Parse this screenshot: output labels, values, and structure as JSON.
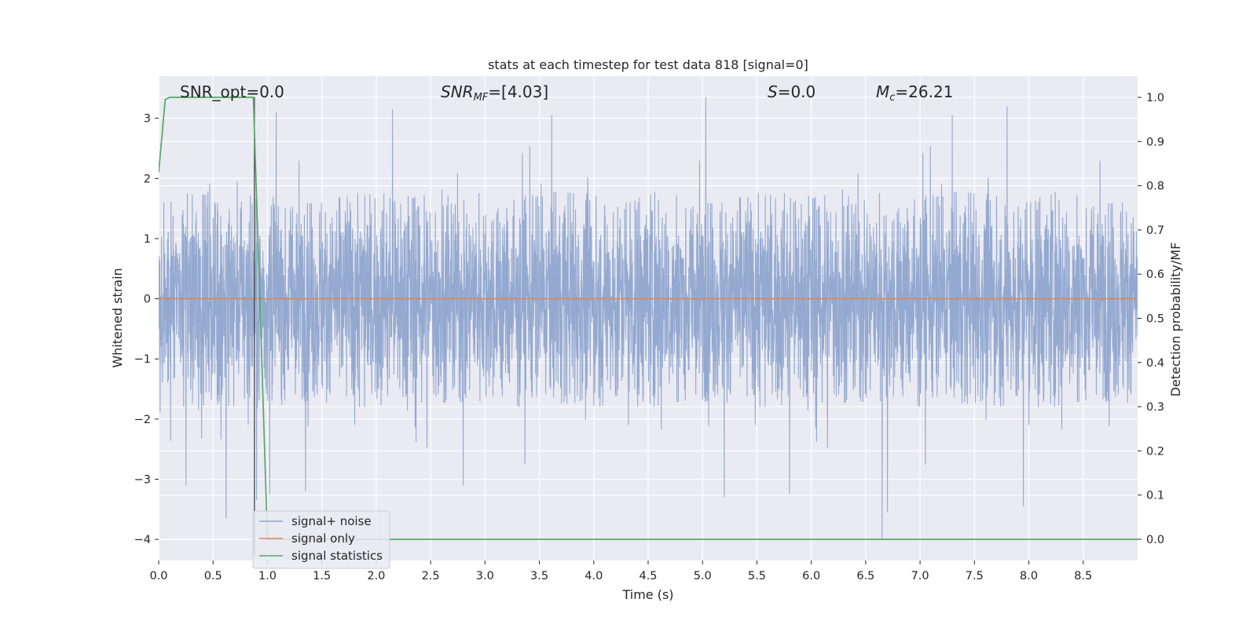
{
  "chart_data": {
    "type": "line",
    "title": "stats at each timestep for test data 818 [signal=0]",
    "xlabel": "Time (s)",
    "ylabel": "Whitened strain",
    "ylabel_right": "Detection probability/MF",
    "xlim": [
      0.0,
      9.0
    ],
    "ylim": [
      -4.35,
      3.7
    ],
    "ylim_right": [
      -0.048,
      1.048
    ],
    "xticks": [
      0.0,
      0.5,
      1.0,
      1.5,
      2.0,
      2.5,
      3.0,
      3.5,
      4.0,
      4.5,
      5.0,
      5.5,
      6.0,
      6.5,
      7.0,
      7.5,
      8.0,
      8.5
    ],
    "xtick_labels": [
      "0.0",
      "0.5",
      "1.0",
      "1.5",
      "2.0",
      "2.5",
      "3.0",
      "3.5",
      "4.0",
      "4.5",
      "5.0",
      "5.5",
      "6.0",
      "6.5",
      "7.0",
      "7.5",
      "8.0",
      "8.5"
    ],
    "yticks": [
      -4,
      -3,
      -2,
      -1,
      0,
      1,
      2,
      3
    ],
    "ytick_labels": [
      "−4",
      "−3",
      "−2",
      "−1",
      "0",
      "1",
      "2",
      "3"
    ],
    "yticks_right": [
      0.0,
      0.1,
      0.2,
      0.3,
      0.4,
      0.5,
      0.6,
      0.7,
      0.8,
      0.9,
      1.0
    ],
    "ytick_labels_right": [
      "0.0",
      "0.1",
      "0.2",
      "0.3",
      "0.4",
      "0.5",
      "0.6",
      "0.7",
      "0.8",
      "0.9",
      "1.0"
    ],
    "grid": true,
    "legend_position": "lower-left",
    "annotations": [
      {
        "text": "SNR_opt=0.0",
        "x": 0.19
      },
      {
        "text": "SNR_MF=[4.03]",
        "x": 2.6
      },
      {
        "text": "S=0.0",
        "x": 5.6
      },
      {
        "text": "M_c=26.21",
        "x": 6.6
      }
    ],
    "vertical_line_x": 0.88,
    "series": [
      {
        "name": "signal+ noise",
        "color": "#8fa5cd",
        "kind": "noise",
        "typical_range": [
          -1.8,
          1.8
        ],
        "notable_extremes": [
          {
            "x": 0.25,
            "y": -3.1
          },
          {
            "x": 0.62,
            "y": -3.65
          },
          {
            "x": 0.9,
            "y": -3.35
          },
          {
            "x": 1.35,
            "y": -3.2
          },
          {
            "x": 1.02,
            "y": -3.25
          },
          {
            "x": 2.8,
            "y": -3.1
          },
          {
            "x": 5.03,
            "y": 3.35
          },
          {
            "x": 5.2,
            "y": -3.3
          },
          {
            "x": 5.8,
            "y": -3.25
          },
          {
            "x": 6.65,
            "y": -4.0
          },
          {
            "x": 6.7,
            "y": -3.55
          },
          {
            "x": 7.95,
            "y": -3.45
          },
          {
            "x": 7.8,
            "y": 3.2
          },
          {
            "x": 1.08,
            "y": 3.1
          },
          {
            "x": 2.15,
            "y": 3.15
          }
        ]
      },
      {
        "name": "signal only",
        "color": "#dd8452",
        "x": [
          0.0,
          9.0
        ],
        "y": [
          0.0,
          0.0
        ]
      },
      {
        "name": "signal statistics",
        "color": "#55a868",
        "axis": "right",
        "x": [
          0.0,
          0.06,
          0.1,
          0.2,
          0.4,
          0.6,
          0.8,
          0.87,
          0.92,
          1.0,
          1.2,
          2.0,
          4.0,
          6.0,
          8.0,
          9.0
        ],
        "y": [
          0.83,
          0.995,
          1.0,
          1.0,
          1.0,
          1.0,
          1.0,
          1.0,
          0.62,
          0.0,
          0.0,
          0.0,
          0.0,
          0.0,
          0.0,
          0.0
        ]
      }
    ]
  }
}
